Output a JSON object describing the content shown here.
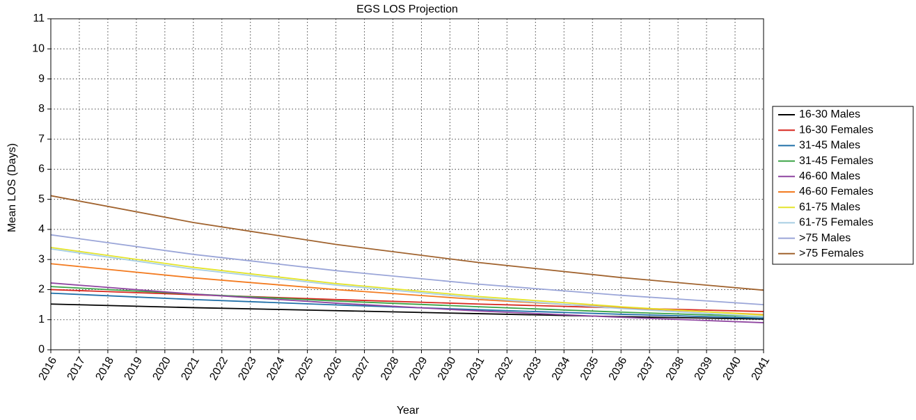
{
  "chart_data": {
    "type": "line",
    "title": "EGS LOS Projection",
    "x_label": "Year",
    "y_label": "Mean LOS (Days)",
    "x": [
      2016,
      2021,
      2026,
      2031,
      2036,
      2041
    ],
    "xlim": [
      2016,
      2041
    ],
    "xticks": [
      2016,
      2017,
      2018,
      2019,
      2020,
      2021,
      2022,
      2023,
      2024,
      2025,
      2026,
      2027,
      2028,
      2029,
      2030,
      2031,
      2032,
      2033,
      2034,
      2035,
      2036,
      2037,
      2038,
      2039,
      2040,
      2041
    ],
    "ylim": [
      0,
      11
    ],
    "yticks": [
      0,
      1,
      2,
      3,
      4,
      5,
      6,
      7,
      8,
      9,
      10,
      11
    ],
    "grid": true,
    "legend": "right",
    "series": [
      {
        "name": "16-30 Males",
        "color": "#000000",
        "values": [
          1.52,
          1.4,
          1.3,
          1.2,
          1.1,
          1.02
        ]
      },
      {
        "name": "16-30 Females",
        "color": "#d7261e",
        "values": [
          2.0,
          1.83,
          1.67,
          1.52,
          1.39,
          1.27
        ]
      },
      {
        "name": "31-45 Males",
        "color": "#1f6fa8",
        "values": [
          1.88,
          1.67,
          1.49,
          1.33,
          1.18,
          1.05
        ]
      },
      {
        "name": "31-45 Females",
        "color": "#3aa345",
        "values": [
          2.1,
          1.85,
          1.62,
          1.43,
          1.25,
          1.1
        ]
      },
      {
        "name": "46-60 Males",
        "color": "#8e44a0",
        "values": [
          2.22,
          1.85,
          1.55,
          1.29,
          1.08,
          0.9
        ]
      },
      {
        "name": "46-60 Females",
        "color": "#f37b20",
        "values": [
          2.86,
          2.39,
          2.0,
          1.67,
          1.4,
          1.17
        ]
      },
      {
        "name": "61-75 Males",
        "color": "#e4e42a",
        "values": [
          3.4,
          2.74,
          2.2,
          1.77,
          1.43,
          1.15
        ]
      },
      {
        "name": "61-75 Females",
        "color": "#a6cee3",
        "values": [
          3.35,
          2.68,
          2.15,
          1.72,
          1.37,
          1.1
        ]
      },
      {
        "name": ">75 Males",
        "color": "#9aa5d8",
        "values": [
          3.82,
          3.17,
          2.63,
          2.18,
          1.81,
          1.5
        ]
      },
      {
        "name": ">75 Females",
        "color": "#a0622d",
        "values": [
          5.12,
          4.23,
          3.5,
          2.9,
          2.4,
          1.98
        ]
      }
    ]
  }
}
